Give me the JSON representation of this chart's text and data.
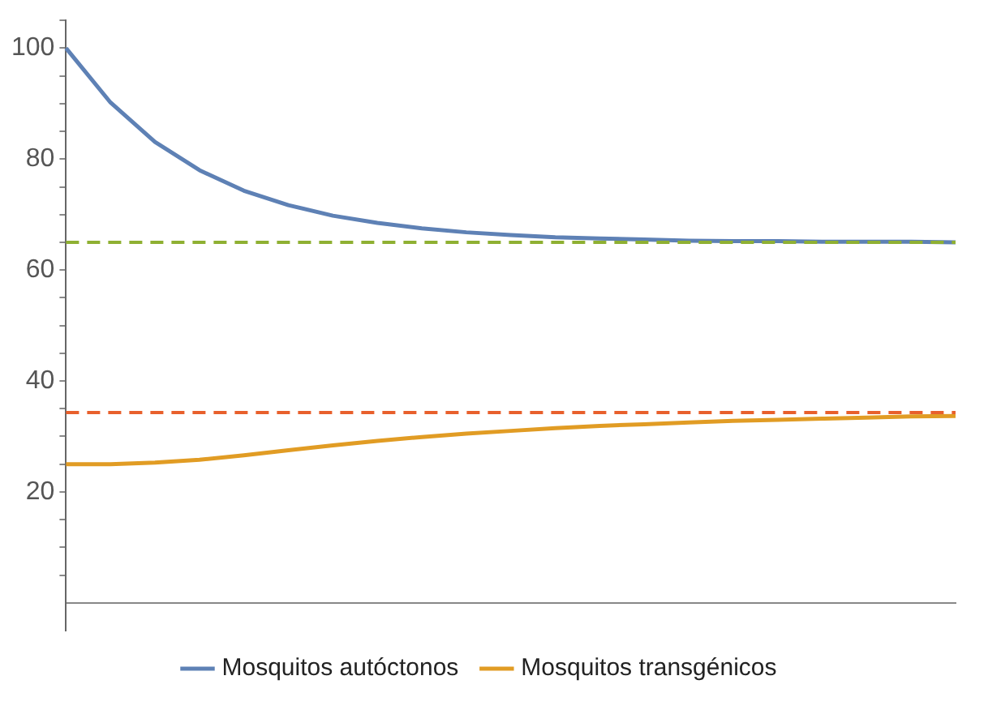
{
  "chart_data": {
    "type": "line",
    "categories": [
      null,
      null,
      null,
      null,
      null,
      null,
      null,
      null,
      null,
      null,
      null,
      null,
      null,
      null,
      null,
      null,
      null,
      null,
      null,
      null,
      null
    ],
    "series": [
      {
        "name": "Mosquitos autóctonos",
        "color": "#5e81b5",
        "values": [
          100,
          90.2,
          83.1,
          78.0,
          74.3,
          71.7,
          69.8,
          68.5,
          67.5,
          66.8,
          66.3,
          65.9,
          65.7,
          65.5,
          65.3,
          65.2,
          65.2,
          65.1,
          65.1,
          65.1,
          65.0
        ]
      },
      {
        "name": "Mosquitos transgénicos",
        "color": "#e19c24",
        "values": [
          25.0,
          25.0,
          25.3,
          25.8,
          26.6,
          27.5,
          28.4,
          29.2,
          29.9,
          30.5,
          31.0,
          31.5,
          31.9,
          32.2,
          32.5,
          32.8,
          33.0,
          33.2,
          33.4,
          33.6,
          33.7
        ]
      }
    ],
    "ylim": [
      -5,
      105
    ],
    "yticks": [
      {
        "value": 5,
        "label": null
      },
      {
        "value": 10,
        "label": null
      },
      {
        "value": 15,
        "label": null
      },
      20,
      {
        "value": 25,
        "label": null
      },
      {
        "value": 30,
        "label": null
      },
      {
        "value": 35,
        "label": null
      },
      40,
      {
        "value": 45,
        "label": null
      },
      {
        "value": 50,
        "label": null
      },
      {
        "value": 55,
        "label": null
      },
      60,
      {
        "value": 65,
        "label": null
      },
      {
        "value": 70,
        "label": null
      },
      {
        "value": 75,
        "label": null
      },
      80,
      {
        "value": 85,
        "label": null
      },
      {
        "value": 90,
        "label": null
      },
      {
        "value": 95,
        "label": null
      },
      100,
      {
        "value": 105,
        "label": null
      }
    ],
    "ref_lines": [
      {
        "axis": "y",
        "value": 65,
        "color": "#8fb032",
        "line_style": "dashed"
      },
      {
        "axis": "y",
        "value": 34.3,
        "color": "#e8602c",
        "line_style": "dashed"
      }
    ],
    "tick_labels": "y",
    "grid": false,
    "legend": "bottom",
    "marker": "none",
    "line_style": "solid"
  }
}
